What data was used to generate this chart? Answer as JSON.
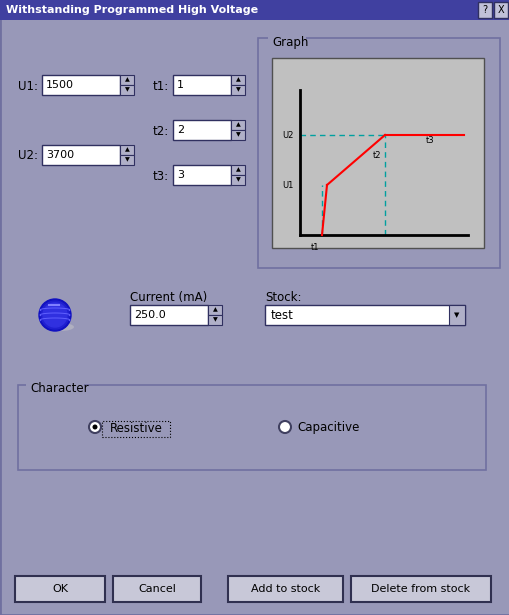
{
  "title": "Withstanding Programmed High Voltage",
  "bg_color": "#9898b8",
  "dialog_bg": "#9898b8",
  "titlebar_bg": "#4040a0",
  "titlebar_fg": "#ffffff",
  "graph_bg": "#c0c0c0",
  "graph_panel_bg": "#9898b8",
  "graph_title": "Graph",
  "u1_label": "U1:",
  "u1_value": "1500",
  "u2_label": "U2:",
  "u2_value": "3700",
  "t1_label": "t1:",
  "t1_value": "1",
  "t2_label": "t2:",
  "t2_value": "2",
  "t3_label": "t3:",
  "t3_value": "3",
  "current_label": "Current (mA)",
  "current_value": "250.0",
  "stock_label": "Stock:",
  "stock_value": "test",
  "character_label": "Character",
  "radio1_label": "Resistive",
  "radio2_label": "Capacitive",
  "btn1": "OK",
  "btn2": "Cancel",
  "btn3": "Add to stock",
  "btn4": "Delete from stock",
  "field_bg": "#ffffff",
  "spin_bg": "#b0b0c8",
  "widget_border": "#303060",
  "panel_border": "#7070a0"
}
